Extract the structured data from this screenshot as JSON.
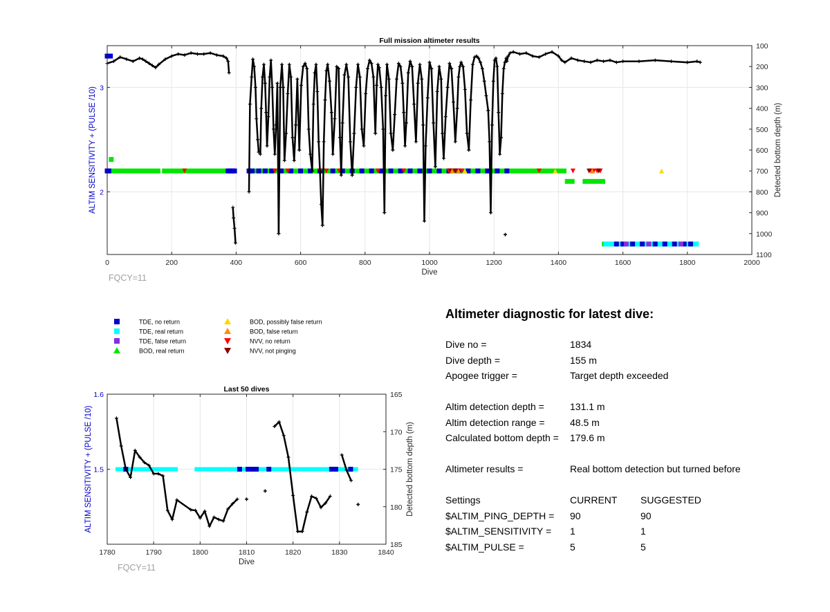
{
  "chart_data": [
    {
      "type": "scatter",
      "title": "Full mission altimeter results",
      "xlabel": "Dive",
      "ylabel_left": "ALTIM SENSITIVITY + (PULSE /10)",
      "ylabel_right": "Detected bottom depth (m)",
      "xlim": [
        0,
        2000
      ],
      "ylim_left": [
        1.4,
        3.4
      ],
      "ylim_right": [
        100,
        1100
      ],
      "right_axis_reversed": true,
      "grid": true,
      "xticks": [
        "0",
        "200",
        "400",
        "600",
        "800",
        "1000",
        "1200",
        "1400",
        "1600",
        "1800",
        "2000"
      ],
      "yticks_left": [
        "2",
        "3"
      ],
      "yticks_right": [
        "100",
        "200",
        "300",
        "400",
        "500",
        "600",
        "700",
        "800",
        "900",
        "1000",
        "1100"
      ],
      "annotation": "FQCY=11",
      "bands": [
        {
          "series": "BOD, real return",
          "x": [
            5,
            20
          ],
          "y": 2.31
        },
        {
          "series": "BOD, real return",
          "x": [
            5,
            165
          ],
          "y": 2.2
        },
        {
          "series": "BOD, real return",
          "x": [
            170,
            370
          ],
          "y": 2.2
        },
        {
          "series": "BOD, real return",
          "x": [
            435,
            1425
          ],
          "y": 2.2
        },
        {
          "series": "BOD, real return",
          "x": [
            1420,
            1450
          ],
          "y": 2.1
        },
        {
          "series": "BOD, real return",
          "x": [
            1475,
            1545
          ],
          "y": 2.1
        },
        {
          "series": "BOD, real return",
          "x": [
            1535,
            1835
          ],
          "y": 1.5
        },
        {
          "series": "TDE, real return",
          "x": [
            1540,
            1835
          ],
          "y": 1.5
        }
      ],
      "markers": [
        {
          "series": "TDE, no return",
          "x": [
            0,
            5,
            375,
            380,
            385,
            390,
            395,
            440,
            450,
            470,
            490,
            510,
            540,
            570,
            600,
            630,
            660,
            700,
            730,
            760,
            790,
            820,
            850,
            880,
            910,
            940,
            970,
            1000,
            1030,
            1060,
            1090,
            1120,
            1150,
            1180,
            1210,
            1240
          ],
          "y": 2.2
        },
        {
          "series": "TDE, no return",
          "x": [
            0,
            10
          ],
          "y": 3.3
        },
        {
          "series": "TDE, no return",
          "x": [
            1580,
            1600,
            1630,
            1660,
            1700,
            1730,
            1760,
            1790,
            1810
          ],
          "y": 1.5
        },
        {
          "series": "TDE, false return",
          "x": [
            1610,
            1680,
            1780
          ],
          "y": 1.5
        },
        {
          "series": "NVV, no return",
          "x": [
            240,
            520,
            560,
            660,
            680,
            720,
            840,
            920,
            1060,
            1075,
            1085,
            1100,
            1340,
            1445,
            1500,
            1510,
            1520,
            1530
          ],
          "y": 2.2
        },
        {
          "series": "NVV, not pinging",
          "x": [
            1065,
            1080,
            1495,
            1525
          ],
          "y": 2.2
        },
        {
          "series": "BOD, false return",
          "x": [
            1070,
            1090,
            1505
          ],
          "y": 2.2
        },
        {
          "series": "BOD, possibly false return",
          "x": [
            1110,
            1390,
            1720
          ],
          "y": 2.2
        }
      ],
      "bottom_depth_segments": [
        {
          "x": [
            0,
            20,
            40,
            60,
            80,
            100,
            110,
            120,
            130,
            140,
            150,
            160,
            180,
            200,
            220,
            240,
            260,
            280,
            300,
            320,
            340,
            360,
            370,
            375,
            378
          ],
          "y": [
            185,
            175,
            155,
            165,
            175,
            160,
            165,
            175,
            185,
            195,
            205,
            190,
            165,
            150,
            140,
            145,
            135,
            140,
            140,
            135,
            145,
            150,
            160,
            175,
            230
          ]
        },
        {
          "x": [
            390,
            392,
            395,
            398
          ],
          "y": [
            875,
            925,
            975,
            1045
          ]
        },
        {
          "x": [
            440,
            443,
            448,
            452,
            456,
            460,
            463,
            467,
            470
          ],
          "y": [
            800,
            380,
            250,
            165,
            200,
            300,
            450,
            550,
            610
          ]
        },
        {
          "x": [
            475,
            478,
            482,
            486,
            490,
            493,
            496,
            500,
            504,
            508,
            512,
            516,
            520,
            524,
            528,
            532
          ],
          "y": [
            620,
            400,
            250,
            190,
            280,
            420,
            580,
            440,
            250,
            170,
            300,
            500,
            620,
            480,
            280,
            1000
          ]
        },
        {
          "x": [
            532,
            537,
            542,
            546,
            550,
            555,
            560,
            565,
            570,
            575,
            580,
            585,
            590,
            596
          ],
          "y": [
            1000,
            300,
            190,
            300,
            650,
            520,
            330,
            190,
            250,
            540,
            650,
            480,
            260,
            600
          ]
        },
        {
          "x": [
            596,
            602,
            608,
            614,
            620,
            625,
            630,
            636
          ],
          "y": [
            600,
            290,
            200,
            185,
            210,
            500,
            620,
            700
          ]
        },
        {
          "x": [
            636,
            640,
            644,
            648,
            652,
            656,
            660,
            664,
            668
          ],
          "y": [
            700,
            380,
            230,
            190,
            320,
            560,
            700,
            860,
            960
          ]
        },
        {
          "x": [
            668,
            672,
            676,
            680,
            684,
            690,
            696,
            700,
            706,
            712,
            718
          ],
          "y": [
            960,
            560,
            360,
            220,
            190,
            270,
            420,
            620,
            450,
            200,
            210
          ]
        },
        {
          "x": [
            718,
            722,
            726,
            730,
            736,
            742,
            748,
            754,
            760
          ],
          "y": [
            210,
            540,
            720,
            470,
            240,
            190,
            250,
            560,
            720
          ]
        },
        {
          "x": [
            760,
            766,
            772,
            778,
            784,
            790,
            796,
            802,
            808,
            814,
            820,
            826,
            832
          ],
          "y": [
            720,
            520,
            300,
            190,
            250,
            500,
            580,
            330,
            210,
            170,
            185,
            250,
            520
          ]
        },
        {
          "x": [
            832,
            836,
            840,
            844,
            850,
            856,
            860,
            864,
            868,
            874,
            880,
            886
          ],
          "y": [
            520,
            290,
            190,
            205,
            300,
            500,
            900,
            340,
            190,
            260,
            520,
            600
          ]
        },
        {
          "x": [
            886,
            892,
            898,
            904,
            910,
            916,
            920,
            924,
            928,
            934,
            940,
            946
          ],
          "y": [
            600,
            430,
            260,
            185,
            200,
            280,
            420,
            580,
            470,
            230,
            175,
            200
          ]
        },
        {
          "x": [
            946,
            952,
            958,
            964,
            970,
            976,
            980,
            984,
            988,
            994,
            1000,
            1006
          ],
          "y": [
            200,
            380,
            560,
            280,
            190,
            260,
            480,
            940,
            580,
            350,
            180,
            210
          ]
        },
        {
          "x": [
            1006,
            1012,
            1018,
            1024,
            1030,
            1036,
            1040,
            1044,
            1050,
            1056,
            1062,
            1068
          ],
          "y": [
            210,
            470,
            680,
            320,
            200,
            260,
            520,
            640,
            440,
            300,
            185,
            210
          ]
        },
        {
          "x": [
            1068,
            1074,
            1080,
            1086,
            1090,
            1094,
            1098,
            1104,
            1110,
            1116,
            1122
          ],
          "y": [
            210,
            370,
            560,
            400,
            250,
            200,
            180,
            200,
            310,
            520,
            600
          ]
        },
        {
          "x": [
            1122,
            1128,
            1134,
            1140,
            1146,
            1152,
            1158,
            1164,
            1170,
            1176,
            1182
          ],
          "y": [
            600,
            360,
            190,
            155,
            150,
            160,
            180,
            210,
            270,
            340,
            410
          ]
        },
        {
          "x": [
            1182,
            1186,
            1190,
            1194,
            1198,
            1202,
            1206,
            1210,
            1214,
            1218,
            1222
          ],
          "y": [
            410,
            560,
            900,
            480,
            270,
            170,
            160,
            200,
            420,
            620,
            540
          ]
        },
        {
          "x": [
            1222,
            1226,
            1230,
            1234,
            1238,
            1240,
            1244,
            1250,
            1260,
            1280,
            1300,
            1320,
            1340,
            1360,
            1380,
            1400,
            1410,
            1420,
            1440,
            1460,
            1480,
            1500,
            1520,
            1540,
            1560,
            1580,
            1600,
            1650,
            1700,
            1750,
            1800,
            1830,
            1840
          ],
          "y": [
            540,
            330,
            210,
            180,
            160,
            175,
            150,
            135,
            130,
            140,
            135,
            150,
            155,
            140,
            130,
            150,
            170,
            180,
            160,
            170,
            175,
            180,
            170,
            175,
            170,
            180,
            175,
            175,
            170,
            175,
            180,
            175,
            180
          ]
        }
      ],
      "isolated_depths": [
        {
          "x": 1235,
          "y": 1005
        }
      ]
    },
    {
      "type": "scatter",
      "title": "Last 50 dives",
      "xlabel": "Dive",
      "ylabel_left": "ALTIM SENSITIVITY + (PULSE /10)",
      "ylabel_right": "Detected bottom depth (m)",
      "xlim": [
        1780,
        1840
      ],
      "ylim_left": [
        1.4,
        1.6
      ],
      "ylim_right": [
        165,
        185
      ],
      "right_axis_reversed": true,
      "grid": true,
      "xticks": [
        "1780",
        "1790",
        "1800",
        "1810",
        "1820",
        "1830",
        "1840"
      ],
      "yticks_left": [
        "1.5",
        "1.6"
      ],
      "yticks_right": [
        "165",
        "170",
        "175",
        "180",
        "185"
      ],
      "annotation": "FQCY=11",
      "bands": [
        {
          "series": "TDE, real return",
          "x": [
            1781.8,
            1795.2
          ],
          "y": 1.5
        },
        {
          "series": "TDE, real return",
          "x": [
            1798.8,
            1834.0
          ],
          "y": 1.5
        }
      ],
      "markers": [
        {
          "series": "TDE, no return",
          "x": [
            1784,
            1808.5,
            1810.3,
            1811.2,
            1812.1,
            1814.8,
            1828.3,
            1829.2,
            1832.4
          ],
          "y": 1.5
        }
      ],
      "bottom_depth_segments": [
        {
          "x": [
            1782,
            1783,
            1784,
            1785,
            1786,
            1787,
            1788,
            1789,
            1790,
            1791,
            1792,
            1793,
            1794,
            1795,
            1798,
            1799,
            1800,
            1801,
            1802,
            1803,
            1804,
            1805,
            1806,
            1807,
            1808
          ],
          "y": [
            168.2,
            171.9,
            175,
            176.1,
            172.5,
            173.4,
            174.1,
            174.5,
            175.6,
            175.6,
            175.9,
            180.5,
            181.7,
            179.1,
            180.4,
            180.5,
            181.5,
            180.6,
            182.6,
            181.4,
            181.7,
            181.9,
            180.3,
            179.6,
            179.0
          ]
        },
        {
          "x": [
            1816,
            1817,
            1818,
            1819,
            1820,
            1821,
            1822,
            1823,
            1824,
            1825,
            1826,
            1827,
            1828
          ],
          "y": [
            169.3,
            168.7,
            170.5,
            173.4,
            178.5,
            183.3,
            183.3,
            180.7,
            178.6,
            178.9,
            180.1,
            179.5,
            178.6
          ]
        },
        {
          "x": [
            1830.5,
            1831.5,
            1832.5
          ],
          "y": [
            173.1,
            175.1,
            176.5
          ]
        }
      ],
      "isolated_depths": [
        {
          "x": 1810,
          "y": 179.0
        },
        {
          "x": 1814,
          "y": 177.9
        },
        {
          "x": 1834,
          "y": 179.7
        }
      ]
    }
  ],
  "colors": {
    "TDE, no return": "#0000cc",
    "TDE, real return": "#00ffff",
    "TDE, false return": "#8a2be2",
    "BOD, real return": "#00e600",
    "BOD, possibly false return": "#ffd700",
    "BOD, false return": "#ff8c00",
    "NVV, no return": "#ff0000",
    "NVV, not pinging": "#8b0000",
    "axis_label_left": "#0000cc",
    "annotation": "#a0a0a0"
  },
  "legend": {
    "col1": [
      {
        "label": "TDE, no return",
        "marker": "square",
        "color": "#0000cc"
      },
      {
        "label": "TDE, real return",
        "marker": "square",
        "color": "#00ffff"
      },
      {
        "label": "TDE, false return",
        "marker": "square",
        "color": "#8a2be2"
      },
      {
        "label": "BOD, real return",
        "marker": "triangle-up",
        "color": "#00e600"
      }
    ],
    "col2": [
      {
        "label": "BOD, possibly false return",
        "marker": "triangle-up",
        "color": "#ffd700"
      },
      {
        "label": "BOD, false return",
        "marker": "triangle-up",
        "color": "#ff8c00"
      },
      {
        "label": "NVV, no return",
        "marker": "triangle-down",
        "color": "#ff0000"
      },
      {
        "label": "NVV, not pinging",
        "marker": "triangle-down",
        "color": "#8b0000"
      }
    ]
  },
  "diagnostic": {
    "title": "Altimeter diagnostic for latest dive:",
    "dive_no_label": "Dive no =",
    "dive_no": "1834",
    "dive_depth_label": "Dive depth =",
    "dive_depth": "155 m",
    "apogee_label": "Apogee trigger =",
    "apogee": "Target depth exceeded",
    "det_depth_label": "Altim detection depth =",
    "det_depth": "131.1 m",
    "det_range_label": "Altim detection range =",
    "det_range": "48.5 m",
    "calc_bottom_label": "Calculated bottom depth =",
    "calc_bottom": "179.6 m",
    "results_label": "Altimeter results =",
    "results": "Real bottom detection but turned before",
    "settings": {
      "header": "Settings",
      "current": "CURRENT",
      "suggested": "SUGGESTED",
      "rows": [
        {
          "name": "$ALTIM_PING_DEPTH =",
          "current": "90",
          "suggested": "90"
        },
        {
          "name": "$ALTIM_SENSITIVITY =",
          "current": "1",
          "suggested": "1"
        },
        {
          "name": "$ALTIM_PULSE =",
          "current": "5",
          "suggested": "5"
        }
      ]
    }
  }
}
